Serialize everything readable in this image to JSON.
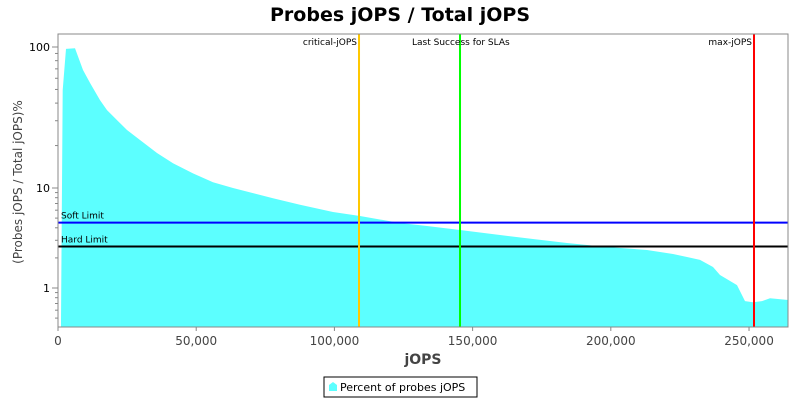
{
  "chart_data": {
    "type": "area",
    "title": "Probes jOPS / Total jOPS",
    "xlabel": "jOPS",
    "ylabel": "(Probes jOPS / Total jOPS)%",
    "xlim": [
      0,
      264100
    ],
    "ylim": [
      0.47,
      128
    ],
    "yscale": "log",
    "grid": false,
    "x_ticks": [
      0,
      50000,
      100000,
      150000,
      200000,
      250000
    ],
    "x_tick_labels": [
      "0",
      "50,000",
      "100,000",
      "150,000",
      "200,000",
      "250,000"
    ],
    "y_ticks": [
      1,
      10,
      100
    ],
    "y_tick_labels": [
      "1",
      "10",
      "100"
    ],
    "series": [
      {
        "name": "Percent of probes jOPS",
        "color": "#5cffff",
        "x": [
          1085,
          1700,
          2900,
          6150,
          9050,
          11580,
          15200,
          17730,
          21350,
          24960,
          29670,
          35820,
          41600,
          48840,
          56080,
          63310,
          70550,
          77790,
          87550,
          99490,
          109260,
          123730,
          133500,
          145440,
          159910,
          171850,
          184150,
          198620,
          213090,
          222500,
          227570,
          232270,
          236980,
          239510,
          245660,
          248550,
          251450,
          254700,
          257600,
          263750
        ],
        "y": [
          0.47,
          49.5,
          97,
          98,
          68.7,
          55.6,
          42,
          35.7,
          30.3,
          25.8,
          21.9,
          17.7,
          15.0,
          12.7,
          11.0,
          10.0,
          8.9,
          7.9,
          6.8,
          5.75,
          5.25,
          4.47,
          4.17,
          3.8,
          3.39,
          3.09,
          2.82,
          2.57,
          2.4,
          2.19,
          2.04,
          1.91,
          1.62,
          1.35,
          1.07,
          0.74,
          0.72,
          0.74,
          0.79,
          0.76
        ]
      }
    ],
    "horizontal_lines": [
      {
        "label": "Soft Limit",
        "value": 4.5,
        "color": "#0000ff"
      },
      {
        "label": "Hard Limit",
        "value": 2.6,
        "color": "#000000"
      }
    ],
    "vertical_lines": [
      {
        "label": "critical-jOPS",
        "value": 108900,
        "color": "#ffc800"
      },
      {
        "label": "Last Success for SLAs",
        "value": 145440,
        "color": "#00ff00"
      },
      {
        "label": "max-jOPS",
        "value": 251800,
        "color": "#ff0000"
      }
    ],
    "legend": {
      "placement": "bottom",
      "entries": [
        "Percent of probes jOPS"
      ]
    }
  }
}
